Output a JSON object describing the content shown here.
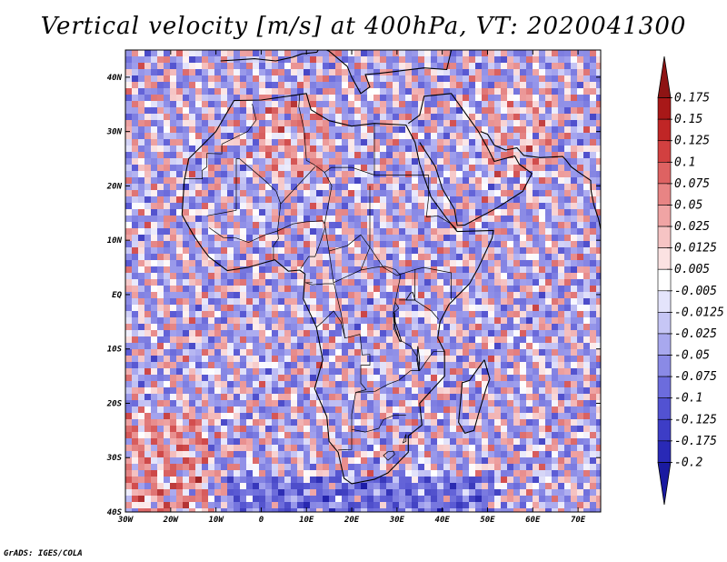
{
  "title": "Vertical velocity [m/s] at 400hPa, VT: 2020041300",
  "footer": "GrADS: IGES/COLA",
  "map": {
    "region": "Africa",
    "lon_range": [
      -30,
      75
    ],
    "lat_range": [
      -40,
      45
    ],
    "lat_ticks": [
      {
        "value": 40,
        "label": "40N"
      },
      {
        "value": 30,
        "label": "30N"
      },
      {
        "value": 20,
        "label": "20N"
      },
      {
        "value": 10,
        "label": "10N"
      },
      {
        "value": 0,
        "label": "EQ"
      },
      {
        "value": -10,
        "label": "10S"
      },
      {
        "value": -20,
        "label": "20S"
      },
      {
        "value": -30,
        "label": "30S"
      },
      {
        "value": -40,
        "label": "40S"
      }
    ],
    "lon_ticks": [
      {
        "value": -30,
        "label": "30W"
      },
      {
        "value": -20,
        "label": "20W"
      },
      {
        "value": -10,
        "label": "10W"
      },
      {
        "value": 0,
        "label": "0"
      },
      {
        "value": 10,
        "label": "10E"
      },
      {
        "value": 20,
        "label": "20E"
      },
      {
        "value": 30,
        "label": "30E"
      },
      {
        "value": 40,
        "label": "40E"
      },
      {
        "value": 50,
        "label": "50E"
      },
      {
        "value": 60,
        "label": "60E"
      },
      {
        "value": 70,
        "label": "70E"
      }
    ],
    "africa_outline": [
      [
        -17,
        21
      ],
      [
        -16,
        25
      ],
      [
        -13,
        27.5
      ],
      [
        -10,
        30
      ],
      [
        -6,
        35.7
      ],
      [
        0,
        35.8
      ],
      [
        10,
        37
      ],
      [
        11,
        34
      ],
      [
        15,
        32
      ],
      [
        20,
        31
      ],
      [
        25,
        31.5
      ],
      [
        32,
        31.2
      ],
      [
        34,
        28
      ],
      [
        35,
        24
      ],
      [
        37.5,
        18
      ],
      [
        41,
        14
      ],
      [
        43.3,
        11.6
      ],
      [
        51.3,
        11.8
      ],
      [
        51,
        10.4
      ],
      [
        48,
        5
      ],
      [
        46,
        2
      ],
      [
        41.5,
        -1.8
      ],
      [
        39.5,
        -5
      ],
      [
        39,
        -8
      ],
      [
        40.5,
        -10.5
      ],
      [
        40.5,
        -15
      ],
      [
        35,
        -20
      ],
      [
        35.5,
        -24
      ],
      [
        32.5,
        -26
      ],
      [
        32.5,
        -29
      ],
      [
        28,
        -32.8
      ],
      [
        25,
        -34
      ],
      [
        20,
        -34.8
      ],
      [
        18.3,
        -33.8
      ],
      [
        17,
        -29
      ],
      [
        15,
        -27
      ],
      [
        14.5,
        -22.5
      ],
      [
        11.8,
        -17.3
      ],
      [
        13.6,
        -12
      ],
      [
        12.2,
        -6
      ],
      [
        9.3,
        -0.8
      ],
      [
        9.7,
        3.8
      ],
      [
        8.5,
        4.5
      ],
      [
        6,
        4.3
      ],
      [
        3,
        6.4
      ],
      [
        0,
        5.7
      ],
      [
        -3,
        5
      ],
      [
        -7.5,
        4.4
      ],
      [
        -11.5,
        6.9
      ],
      [
        -13,
        8.5
      ],
      [
        -15,
        11
      ],
      [
        -16.7,
        13.5
      ],
      [
        -17.5,
        14.7
      ],
      [
        -17,
        21
      ]
    ],
    "madagascar_outline": [
      [
        49.3,
        -12
      ],
      [
        50.5,
        -15.5
      ],
      [
        49.8,
        -17
      ],
      [
        48,
        -22
      ],
      [
        47,
        -25
      ],
      [
        45,
        -25.5
      ],
      [
        43.6,
        -23.5
      ],
      [
        44,
        -20
      ],
      [
        44.4,
        -16.2
      ],
      [
        46,
        -15.8
      ],
      [
        48,
        -13.5
      ],
      [
        49.3,
        -12
      ]
    ],
    "arabia_outline": [
      [
        32.5,
        31.5
      ],
      [
        35,
        33
      ],
      [
        36,
        36.5
      ],
      [
        42,
        37
      ],
      [
        48,
        30
      ],
      [
        50,
        27
      ],
      [
        51.5,
        24.5
      ],
      [
        56,
        25.5
      ],
      [
        57,
        24
      ],
      [
        59.8,
        22.3
      ],
      [
        57.8,
        19
      ],
      [
        52.2,
        16
      ],
      [
        45,
        12.8
      ],
      [
        43.3,
        12.7
      ],
      [
        42.7,
        15.7
      ],
      [
        40,
        19.5
      ],
      [
        38.5,
        23.5
      ],
      [
        35,
        28
      ]
    ],
    "europe_outline": [
      [
        -9,
        43
      ],
      [
        -1.5,
        43.4
      ],
      [
        3.2,
        43
      ],
      [
        7,
        43.7
      ],
      [
        9,
        44.3
      ],
      [
        12.3,
        44.6
      ],
      [
        13,
        45.5
      ],
      [
        15,
        44.8
      ],
      [
        19,
        42
      ],
      [
        20,
        40
      ],
      [
        22,
        37
      ],
      [
        24,
        38.2
      ],
      [
        23,
        40.5
      ],
      [
        26,
        40.7
      ],
      [
        29,
        41
      ],
      [
        31,
        41.2
      ],
      [
        36,
        41.7
      ],
      [
        41,
        41.4
      ],
      [
        42,
        45
      ],
      [
        47,
        45
      ],
      [
        52,
        45
      ],
      [
        56,
        45
      ],
      [
        60,
        45
      ],
      [
        70,
        45
      ],
      [
        75,
        45
      ]
    ],
    "iran_coast": [
      [
        48.5,
        30
      ],
      [
        50,
        29.5
      ],
      [
        51.5,
        27.5
      ],
      [
        54,
        26.6
      ],
      [
        56.5,
        27
      ],
      [
        58,
        25.6
      ],
      [
        61.6,
        25.2
      ],
      [
        66.6,
        25.4
      ],
      [
        67.3,
        24.8
      ],
      [
        68.5,
        23.5
      ],
      [
        70,
        22.6
      ],
      [
        72.8,
        21
      ],
      [
        72.9,
        19
      ],
      [
        73.5,
        16.5
      ],
      [
        74.5,
        14
      ],
      [
        75,
        12
      ]
    ],
    "country_borders": [
      [
        [
          -8.7,
          27.7
        ],
        [
          -8.7,
          25.9
        ],
        [
          -12,
          26
        ],
        [
          -12,
          23.5
        ],
        [
          -13.1,
          22.8
        ],
        [
          -13,
          21.3
        ],
        [
          -17,
          21.3
        ]
      ],
      [
        [
          -8.7,
          27.7
        ],
        [
          -3,
          30
        ],
        [
          -1.1,
          32.1
        ],
        [
          -2,
          35.1
        ]
      ],
      [
        [
          8.5,
          36.9
        ],
        [
          8.3,
          34.6
        ],
        [
          9.5,
          30.3
        ],
        [
          10,
          24.7
        ],
        [
          11.5,
          24
        ],
        [
          14,
          22.5
        ],
        [
          15.5,
          23.4
        ],
        [
          20,
          23.4
        ],
        [
          25,
          22
        ],
        [
          25,
          31.5
        ]
      ],
      [
        [
          25,
          22
        ],
        [
          37,
          22
        ]
      ],
      [
        [
          24,
          20
        ],
        [
          24,
          8.7
        ],
        [
          22,
          4.5
        ],
        [
          16,
          2.2
        ],
        [
          15,
          8
        ],
        [
          14,
          13
        ],
        [
          15.6,
          20
        ],
        [
          14,
          22.5
        ]
      ],
      [
        [
          -12,
          14.5
        ],
        [
          -5.5,
          15.5
        ],
        [
          -5.5,
          25
        ],
        [
          -4.8,
          25
        ],
        [
          1.2,
          20.7
        ],
        [
          3.3,
          19
        ],
        [
          4.3,
          16.7
        ],
        [
          3.6,
          11.7
        ],
        [
          0.9,
          11
        ],
        [
          -2.8,
          9.6
        ],
        [
          -5.5,
          10.4
        ],
        [
          -8.4,
          10.5
        ],
        [
          -11.5,
          12.3
        ]
      ],
      [
        [
          4.3,
          16.7
        ],
        [
          11.9,
          23.5
        ]
      ],
      [
        [
          3.6,
          11.7
        ],
        [
          3.8,
          10.3
        ],
        [
          2.7,
          9
        ],
        [
          2.7,
          6.3
        ]
      ],
      [
        [
          3.6,
          11.7
        ],
        [
          7,
          13
        ],
        [
          10,
          13.4
        ],
        [
          13.6,
          13.6
        ],
        [
          14,
          13
        ]
      ],
      [
        [
          14.2,
          12.5
        ],
        [
          13,
          9.5
        ],
        [
          11.9,
          7
        ],
        [
          10.5,
          7
        ],
        [
          8.7,
          4.8
        ]
      ],
      [
        [
          15,
          8
        ],
        [
          19,
          9
        ],
        [
          22,
          11
        ],
        [
          24,
          8.7
        ],
        [
          27,
          5
        ],
        [
          30,
          3.5
        ],
        [
          31,
          3.8
        ],
        [
          34,
          4.6
        ],
        [
          35.9,
          5
        ],
        [
          42,
          4
        ],
        [
          42,
          -1
        ]
      ],
      [
        [
          37,
          22
        ],
        [
          37,
          18
        ],
        [
          36.5,
          14.3
        ],
        [
          38,
          14.4
        ],
        [
          39,
          14.5
        ],
        [
          42,
          13
        ],
        [
          43.2,
          12
        ]
      ],
      [
        [
          22,
          4.5
        ],
        [
          25,
          5
        ],
        [
          27.4,
          5.2
        ],
        [
          29.6,
          4.6
        ],
        [
          30.8,
          3.5
        ],
        [
          29.6,
          -1.4
        ],
        [
          29.2,
          -3.3
        ],
        [
          29.3,
          -6.3
        ],
        [
          30.5,
          -8.3
        ],
        [
          33,
          -9.5
        ],
        [
          34.5,
          -11.5
        ],
        [
          35,
          -14
        ],
        [
          33,
          -14
        ],
        [
          30.5,
          -15.7
        ],
        [
          28,
          -16.5
        ],
        [
          25.2,
          -17.8
        ],
        [
          20.9,
          -18
        ],
        [
          20,
          -22
        ],
        [
          20,
          -24.8
        ],
        [
          20,
          -28.5
        ],
        [
          17,
          -28.6
        ]
      ],
      [
        [
          12.2,
          -6
        ],
        [
          13.6,
          -5
        ],
        [
          16,
          -3
        ],
        [
          17.6,
          -5
        ],
        [
          18.5,
          -8
        ],
        [
          21.8,
          -7.3
        ],
        [
          22.3,
          -11.1
        ],
        [
          24,
          -11
        ],
        [
          24,
          -13
        ],
        [
          22,
          -13
        ],
        [
          22,
          -16.3
        ],
        [
          23.2,
          -17.5
        ],
        [
          20.9,
          -18
        ]
      ],
      [
        [
          11.3,
          2.2
        ],
        [
          9.8,
          2.2
        ],
        [
          11.2,
          1.8
        ],
        [
          14,
          2
        ],
        [
          16.1,
          2
        ],
        [
          17.7,
          -3.7
        ],
        [
          18.5,
          -8
        ]
      ],
      [
        [
          35,
          -14
        ],
        [
          38,
          -10.5
        ],
        [
          40.5,
          -10.5
        ]
      ],
      [
        [
          32,
          -22.2
        ],
        [
          29.4,
          -22.2
        ],
        [
          27,
          -23
        ],
        [
          26,
          -24.6
        ],
        [
          23,
          -25.3
        ],
        [
          20,
          -24.8
        ]
      ],
      [
        [
          28,
          -30.5
        ],
        [
          29.5,
          -29.4
        ],
        [
          29.2,
          -28.8
        ],
        [
          28,
          -28.9
        ],
        [
          27,
          -29.6
        ],
        [
          28,
          -30.5
        ]
      ],
      [
        [
          32,
          -25.7
        ],
        [
          31.3,
          -27.3
        ],
        [
          32,
          -27
        ],
        [
          32,
          -25.7
        ]
      ],
      [
        [
          33.9,
          -1
        ],
        [
          34,
          4.6
        ]
      ],
      [
        [
          33.9,
          -1
        ],
        [
          37.6,
          -3
        ],
        [
          39.2,
          -4.6
        ]
      ],
      [
        [
          30.5,
          -1
        ],
        [
          33.9,
          -1
        ]
      ],
      [
        [
          29.6,
          -1.4
        ],
        [
          30.4,
          -2.5
        ],
        [
          29.3,
          -3.3
        ]
      ]
    ],
    "lakes": [
      [
        [
          32,
          -1
        ],
        [
          34,
          -1
        ],
        [
          33.5,
          0.4
        ],
        [
          33,
          0.3
        ],
        [
          32,
          -1
        ]
      ],
      [
        [
          29.2,
          -3.3
        ],
        [
          29.6,
          -6.2
        ],
        [
          30.6,
          -8.6
        ],
        [
          31,
          -8.6
        ],
        [
          29.6,
          -5
        ],
        [
          29.5,
          -3.5
        ],
        [
          29.2,
          -3.3
        ]
      ],
      [
        [
          34.6,
          -9.5
        ],
        [
          34.4,
          -12
        ],
        [
          34.8,
          -14
        ],
        [
          35,
          -12
        ],
        [
          34.6,
          -9.5
        ]
      ]
    ],
    "color_stops": [
      {
        "v": -0.2,
        "c": "#1a1aa6"
      },
      {
        "v": -0.1,
        "c": "#5e5ed6"
      },
      {
        "v": -0.025,
        "c": "#a4a4ee"
      },
      {
        "v": 0,
        "c": "#ffffff"
      },
      {
        "v": 0.025,
        "c": "#f0a7a7"
      },
      {
        "v": 0.1,
        "c": "#d24c4c"
      },
      {
        "v": 0.175,
        "c": "#8e1414"
      }
    ]
  },
  "colorbar": {
    "colors": [
      "#8e1414",
      "#a81818",
      "#c02626",
      "#d24040",
      "#de6262",
      "#e88484",
      "#f0a4a4",
      "#f6c4c4",
      "#fbe2e2",
      "#ffffff",
      "#e4e4fb",
      "#c6c6f5",
      "#a8a8ee",
      "#8a8ae6",
      "#6c6cdd",
      "#5252d2",
      "#3d3dc6",
      "#2929b6",
      "#1a1aa0"
    ],
    "labels": [
      "0.175",
      "0.15",
      "0.125",
      "0.1",
      "0.075",
      "0.05",
      "0.025",
      "0.0125",
      "0.005",
      "-0.005",
      "-0.0125",
      "-0.025",
      "-0.05",
      "-0.075",
      "-0.1",
      "-0.125",
      "-0.175",
      "-0.2"
    ]
  }
}
